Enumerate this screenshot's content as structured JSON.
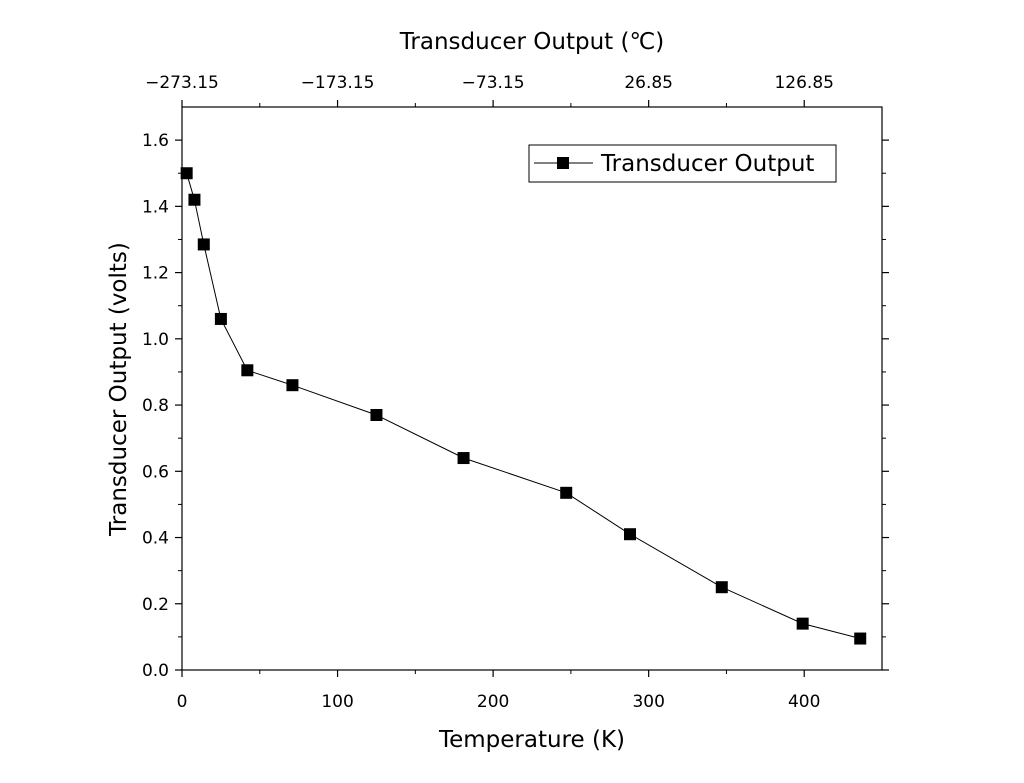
{
  "chart_data": {
    "type": "line",
    "xlabel": "Temperature (K)",
    "ylabel": "Transducer Output (volts)",
    "top_xlabel": "Transducer Output (℃)",
    "xlim": [
      0,
      450
    ],
    "ylim": [
      0,
      1.7
    ],
    "x_ticks": [
      0,
      100,
      200,
      300,
      400
    ],
    "y_ticks": [
      0.0,
      0.2,
      0.4,
      0.6,
      0.8,
      1.0,
      1.2,
      1.4,
      1.6
    ],
    "y_tick_labels": [
      "0.0",
      "0.2",
      "0.4",
      "0.6",
      "0.8",
      "1.0",
      "1.2",
      "1.4",
      "1.6"
    ],
    "top_ticks_kelvin": [
      0,
      100,
      200,
      300,
      400
    ],
    "top_tick_labels": [
      "−273.15",
      "−173.15",
      "−73.15",
      "26.85",
      "126.85"
    ],
    "grid": false,
    "legend_position": "top-right",
    "series": [
      {
        "name": "Transducer Output",
        "x": [
          3,
          8,
          14,
          25,
          42,
          71,
          125,
          181,
          247,
          288,
          347,
          399,
          436
        ],
        "y": [
          1.5,
          1.42,
          1.285,
          1.06,
          0.905,
          0.86,
          0.77,
          0.64,
          0.535,
          0.41,
          0.25,
          0.14,
          0.095
        ]
      }
    ],
    "colors": {
      "line": "#000000",
      "marker": "#000000",
      "axis": "#000000"
    },
    "marker": "square"
  }
}
